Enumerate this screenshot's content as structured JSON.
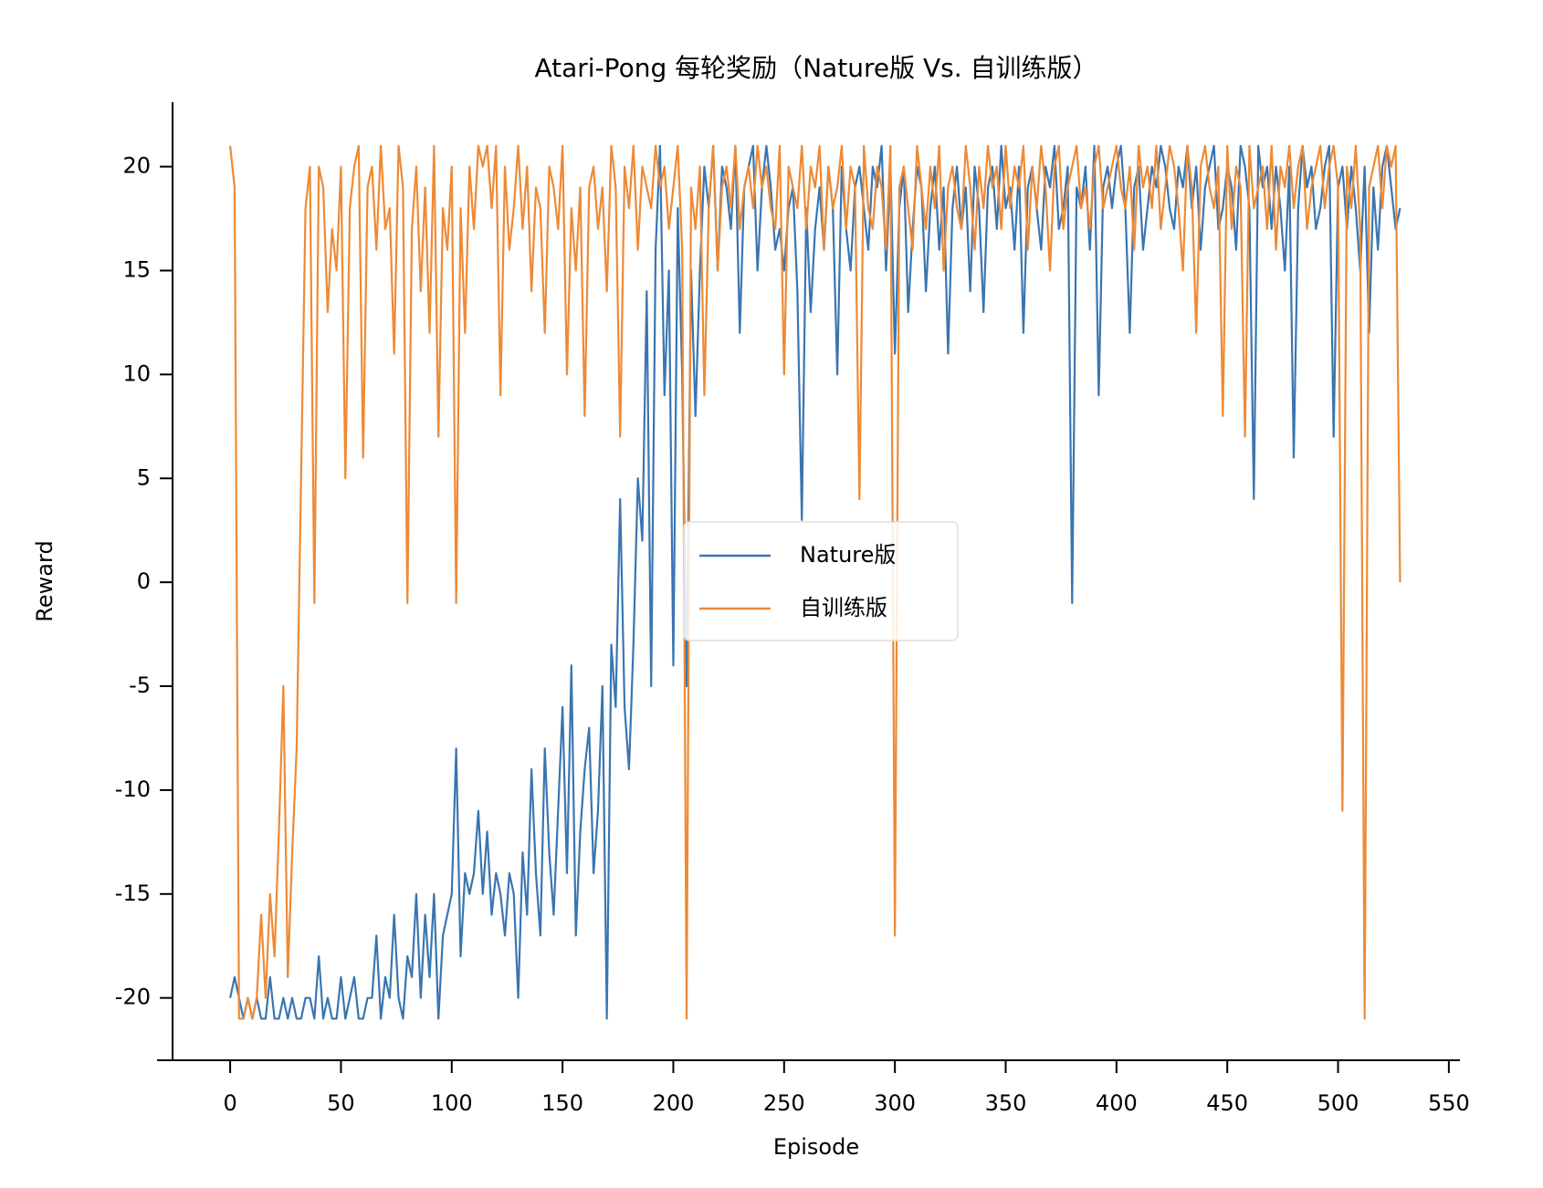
{
  "chart_data": {
    "type": "line",
    "title": "Atari-Pong 每轮奖励（Nature版 Vs. 自训练版）",
    "x_label": "Episode",
    "y_label": "Reward",
    "xlim": [
      -26,
      555
    ],
    "ylim": [
      -23,
      23.1
    ],
    "xticks": [
      0,
      50,
      100,
      150,
      200,
      250,
      300,
      350,
      400,
      450,
      500,
      550
    ],
    "yticks": [
      -20,
      -15,
      -10,
      -5,
      0,
      5,
      10,
      15,
      20
    ],
    "legend": "center",
    "x": [
      0,
      2,
      4,
      6,
      8,
      10,
      12,
      14,
      16,
      18,
      20,
      22,
      24,
      26,
      28,
      30,
      32,
      34,
      36,
      38,
      40,
      42,
      44,
      46,
      48,
      50,
      52,
      54,
      56,
      58,
      60,
      62,
      64,
      66,
      68,
      70,
      72,
      74,
      76,
      78,
      80,
      82,
      84,
      86,
      88,
      90,
      92,
      94,
      96,
      98,
      100,
      102,
      104,
      106,
      108,
      110,
      112,
      114,
      116,
      118,
      120,
      122,
      124,
      126,
      128,
      130,
      132,
      134,
      136,
      138,
      140,
      142,
      144,
      146,
      148,
      150,
      152,
      154,
      156,
      158,
      160,
      162,
      164,
      166,
      168,
      170,
      172,
      174,
      176,
      178,
      180,
      182,
      184,
      186,
      188,
      190,
      192,
      194,
      196,
      198,
      200,
      202,
      204,
      206,
      208,
      210,
      212,
      214,
      216,
      218,
      220,
      222,
      224,
      226,
      228,
      230,
      232,
      234,
      236,
      238,
      240,
      242,
      244,
      246,
      248,
      250,
      252,
      254,
      256,
      258,
      260,
      262,
      264,
      266,
      268,
      270,
      272,
      274,
      276,
      278,
      280,
      282,
      284,
      286,
      288,
      290,
      292,
      294,
      296,
      298,
      300,
      302,
      304,
      306,
      308,
      310,
      312,
      314,
      316,
      318,
      320,
      322,
      324,
      326,
      328,
      330,
      332,
      334,
      336,
      338,
      340,
      342,
      344,
      346,
      348,
      350,
      352,
      354,
      356,
      358,
      360,
      362,
      364,
      366,
      368,
      370,
      372,
      374,
      376,
      378,
      380,
      382,
      384,
      386,
      388,
      390,
      392,
      394,
      396,
      398,
      400,
      402,
      404,
      406,
      408,
      410,
      412,
      414,
      416,
      418,
      420,
      422,
      424,
      426,
      428,
      430,
      432,
      434,
      436,
      438,
      440,
      442,
      444,
      446,
      448,
      450,
      452,
      454,
      456,
      458,
      460,
      462,
      464,
      466,
      468,
      470,
      472,
      474,
      476,
      478,
      480,
      482,
      484,
      486,
      488,
      490,
      492,
      494,
      496,
      498,
      500,
      502,
      504,
      506,
      508,
      510,
      512,
      514,
      516,
      518,
      520,
      522,
      524,
      526,
      528
    ],
    "series": [
      {
        "name": "Nature版",
        "color": "#3a75b0",
        "values": [
          -20,
          -19,
          -20,
          -21,
          -20,
          -21,
          -20,
          -21,
          -21,
          -19,
          -21,
          -21,
          -20,
          -21,
          -20,
          -21,
          -21,
          -20,
          -20,
          -21,
          -18,
          -21,
          -20,
          -21,
          -21,
          -19,
          -21,
          -20,
          -19,
          -21,
          -21,
          -20,
          -20,
          -17,
          -21,
          -19,
          -20,
          -16,
          -20,
          -21,
          -18,
          -19,
          -15,
          -20,
          -16,
          -19,
          -15,
          -21,
          -17,
          -16,
          -15,
          -8,
          -18,
          -14,
          -15,
          -14,
          -11,
          -15,
          -12,
          -16,
          -14,
          -15,
          -17,
          -14,
          -15,
          -20,
          -13,
          -16,
          -9,
          -14,
          -17,
          -8,
          -13,
          -16,
          -11,
          -6,
          -14,
          -4,
          -17,
          -12,
          -9,
          -7,
          -14,
          -11,
          -5,
          -21,
          -3,
          -6,
          4,
          -6,
          -9,
          -3,
          5,
          2,
          14,
          -5,
          16,
          21,
          9,
          15,
          -4,
          18,
          10,
          -5,
          15,
          8,
          15,
          20,
          18,
          21,
          15,
          20,
          19,
          17,
          21,
          12,
          19,
          20,
          21,
          15,
          19,
          21,
          19,
          16,
          17,
          15,
          18,
          19,
          14,
          3,
          18,
          13,
          17,
          19,
          16,
          20,
          18,
          10,
          20,
          17,
          15,
          19,
          20,
          18,
          16,
          20,
          19,
          21,
          15,
          20,
          11,
          18,
          20,
          13,
          17,
          20,
          19,
          14,
          18,
          20,
          16,
          19,
          11,
          18,
          20,
          17,
          19,
          14,
          20,
          18,
          13,
          19,
          20,
          17,
          21,
          18,
          19,
          16,
          20,
          12,
          19,
          20,
          18,
          16,
          20,
          19,
          21,
          17,
          18,
          20,
          -1,
          19,
          18,
          20,
          16,
          21,
          9,
          19,
          20,
          18,
          20,
          21,
          18,
          12,
          19,
          20,
          16,
          18,
          20,
          19,
          21,
          20,
          18,
          17,
          20,
          19,
          21,
          18,
          20,
          16,
          19,
          20,
          21,
          17,
          18,
          20,
          19,
          16,
          21,
          20,
          18,
          4,
          21,
          19,
          20,
          17,
          20,
          18,
          15,
          20,
          6,
          18,
          21,
          19,
          20,
          17,
          18,
          20,
          21,
          7,
          19,
          20,
          17,
          20,
          18,
          15,
          20,
          12,
          19,
          16,
          20,
          21,
          19,
          17,
          18
        ]
      },
      {
        "name": "自训练版",
        "color": "#ee8a35",
        "values": [
          21,
          19,
          -21,
          -21,
          -20,
          -21,
          -20,
          -16,
          -20,
          -15,
          -18,
          -12,
          -5,
          -19,
          -13,
          -8,
          5,
          18,
          20,
          -1,
          20,
          19,
          13,
          17,
          15,
          20,
          5,
          18,
          20,
          21,
          6,
          19,
          20,
          16,
          21,
          17,
          18,
          11,
          21,
          19,
          -1,
          17,
          20,
          14,
          19,
          12,
          21,
          7,
          18,
          16,
          20,
          -1,
          18,
          12,
          20,
          17,
          21,
          20,
          21,
          18,
          21,
          9,
          20,
          16,
          18,
          21,
          17,
          20,
          14,
          19,
          18,
          12,
          20,
          19,
          17,
          21,
          10,
          18,
          15,
          19,
          8,
          19,
          20,
          17,
          19,
          14,
          21,
          19,
          7,
          20,
          18,
          21,
          16,
          20,
          19,
          18,
          21,
          19,
          20,
          17,
          19,
          21,
          16,
          -21,
          19,
          17,
          20,
          9,
          18,
          21,
          15,
          19,
          20,
          18,
          21,
          17,
          19,
          20,
          18,
          21,
          19,
          20,
          18,
          17,
          21,
          10,
          20,
          19,
          18,
          21,
          17,
          20,
          19,
          21,
          16,
          20,
          18,
          19,
          21,
          17,
          20,
          19,
          4,
          21,
          18,
          17,
          20,
          19,
          16,
          21,
          -17,
          19,
          20,
          18,
          16,
          21,
          19,
          17,
          20,
          18,
          21,
          15,
          19,
          20,
          18,
          17,
          21,
          19,
          16,
          20,
          18,
          21,
          19,
          20,
          17,
          21,
          18,
          20,
          19,
          21,
          16,
          20,
          18,
          21,
          19,
          15,
          20,
          21,
          17,
          19,
          20,
          21,
          18,
          19,
          17,
          20,
          21,
          18,
          19,
          20,
          21,
          19,
          18,
          20,
          16,
          21,
          19,
          20,
          18,
          21,
          17,
          19,
          21,
          20,
          18,
          15,
          21,
          19,
          12,
          20,
          21,
          19,
          18,
          20,
          8,
          21,
          17,
          20,
          19,
          7,
          21,
          18,
          19,
          20,
          17,
          21,
          16,
          20,
          19,
          21,
          18,
          20,
          21,
          17,
          19,
          20,
          21,
          18,
          20,
          21,
          19,
          -11,
          20,
          18,
          21,
          17,
          -21,
          19,
          20,
          21,
          18,
          21,
          20,
          21,
          0
        ]
      }
    ]
  }
}
